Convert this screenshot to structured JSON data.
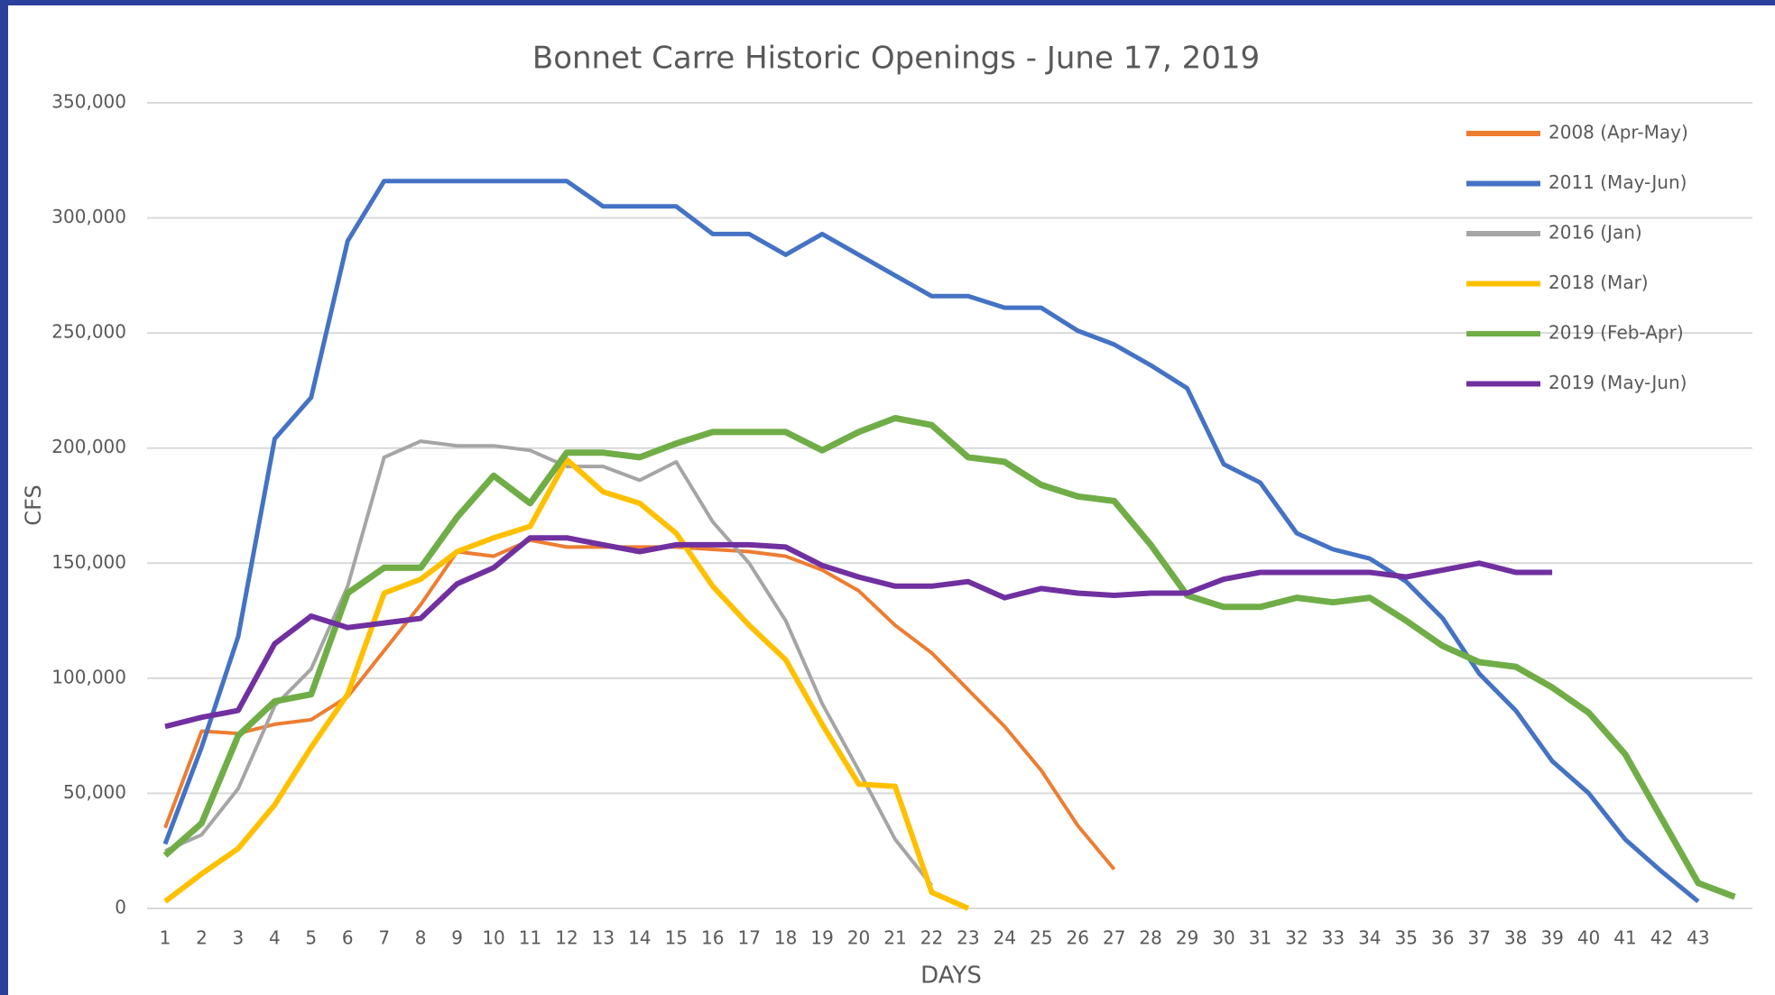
{
  "chart_data": {
    "type": "line",
    "title": "Bonnet Carre Historic Openings - June 17, 2019",
    "x_label": "DAYS",
    "y_label": "CFS",
    "categories": [
      "1",
      "2",
      "3",
      "4",
      "5",
      "6",
      "7",
      "8",
      "9",
      "10",
      "11",
      "12",
      "13",
      "14",
      "15",
      "16",
      "17",
      "18",
      "19",
      "20",
      "21",
      "22",
      "23",
      "24",
      "25",
      "26",
      "27",
      "28",
      "29",
      "30",
      "31",
      "32",
      "33",
      "34",
      "35",
      "36",
      "37",
      "38",
      "39",
      "40",
      "41",
      "42",
      "43",
      null
    ],
    "ylim": [
      0,
      350000
    ],
    "yticks": [
      0,
      {
        "value": 50000,
        "label": "50,000"
      },
      {
        "value": 100000,
        "label": "100,000"
      },
      {
        "value": 150000,
        "label": "150,000"
      },
      {
        "value": 200000,
        "label": "200,000"
      },
      {
        "value": 250000,
        "label": "250,000"
      },
      {
        "value": 300000,
        "label": "300,000"
      },
      {
        "value": 350000,
        "label": "350,000"
      }
    ],
    "grid": true,
    "legend": "upper right",
    "series": [
      {
        "name": "2008 (Apr-May)",
        "color": "#ed7d31",
        "values": [
          35000,
          77000,
          76000,
          80000,
          82000,
          92000,
          112000,
          132000,
          155000,
          153000,
          160000,
          157000,
          157000,
          157000,
          157000,
          156000,
          155000,
          153000,
          147000,
          138000,
          123000,
          111000,
          95000,
          79000,
          60000,
          36000,
          17000,
          null,
          null,
          null,
          null,
          null,
          null,
          null,
          null,
          null,
          null,
          null,
          null,
          null,
          null,
          null,
          null,
          null
        ]
      },
      {
        "name": "2011 (May-Jun)",
        "color": "#4472c4",
        "values": [
          28000,
          70000,
          118000,
          204000,
          222000,
          290000,
          316000,
          316000,
          316000,
          316000,
          316000,
          316000,
          305000,
          305000,
          305000,
          293000,
          293000,
          284000,
          293000,
          284000,
          275000,
          266000,
          266000,
          261000,
          261000,
          251000,
          245000,
          236000,
          226000,
          193000,
          185000,
          163000,
          156000,
          152000,
          142000,
          126000,
          102000,
          86000,
          64000,
          50000,
          30000,
          16000,
          3000,
          null
        ]
      },
      {
        "name": "2016 (Jan)",
        "color": "#a5a5a5",
        "values": [
          25000,
          32000,
          52000,
          88000,
          104000,
          140000,
          196000,
          203000,
          201000,
          201000,
          199000,
          192000,
          192000,
          186000,
          194000,
          168000,
          150000,
          125000,
          89000,
          60000,
          30000,
          10000,
          null,
          null,
          null,
          null,
          null,
          null,
          null,
          null,
          null,
          null,
          null,
          null,
          null,
          null,
          null,
          null,
          null,
          null,
          null,
          null,
          null,
          null
        ]
      },
      {
        "name": "2018 (Mar)",
        "color": "#ffc000",
        "values": [
          3000,
          15000,
          26000,
          45000,
          70000,
          93000,
          137000,
          143000,
          155000,
          161000,
          166000,
          195000,
          181000,
          176000,
          163000,
          140000,
          123000,
          108000,
          80000,
          54000,
          53000,
          7000,
          0,
          null,
          null,
          null,
          null,
          null,
          null,
          null,
          null,
          null,
          null,
          null,
          null,
          null,
          null,
          null,
          null,
          null,
          null,
          null,
          null,
          null
        ]
      },
      {
        "name": "2019 (Feb-Apr)",
        "color": "#70ad47",
        "values": [
          23000,
          37000,
          75000,
          90000,
          93000,
          137000,
          148000,
          148000,
          170000,
          188000,
          176000,
          198000,
          198000,
          196000,
          202000,
          207000,
          207000,
          207000,
          199000,
          207000,
          213000,
          210000,
          196000,
          194000,
          184000,
          179000,
          177000,
          158000,
          136000,
          131000,
          131000,
          135000,
          133000,
          135000,
          125000,
          114000,
          107000,
          105000,
          96000,
          85000,
          67000,
          39000,
          11000,
          5000
        ]
      },
      {
        "name": "2019 (May-Jun)",
        "color": "#7030a0",
        "values": [
          79000,
          83000,
          86000,
          115000,
          127000,
          122000,
          124000,
          126000,
          141000,
          148000,
          161000,
          161000,
          158000,
          155000,
          158000,
          158000,
          158000,
          157000,
          149000,
          144000,
          140000,
          140000,
          142000,
          135000,
          139000,
          137000,
          136000,
          137000,
          137000,
          143000,
          146000,
          146000,
          146000,
          146000,
          144000,
          147000,
          150000,
          146000,
          146000,
          null,
          null,
          null,
          null,
          null
        ]
      }
    ]
  }
}
